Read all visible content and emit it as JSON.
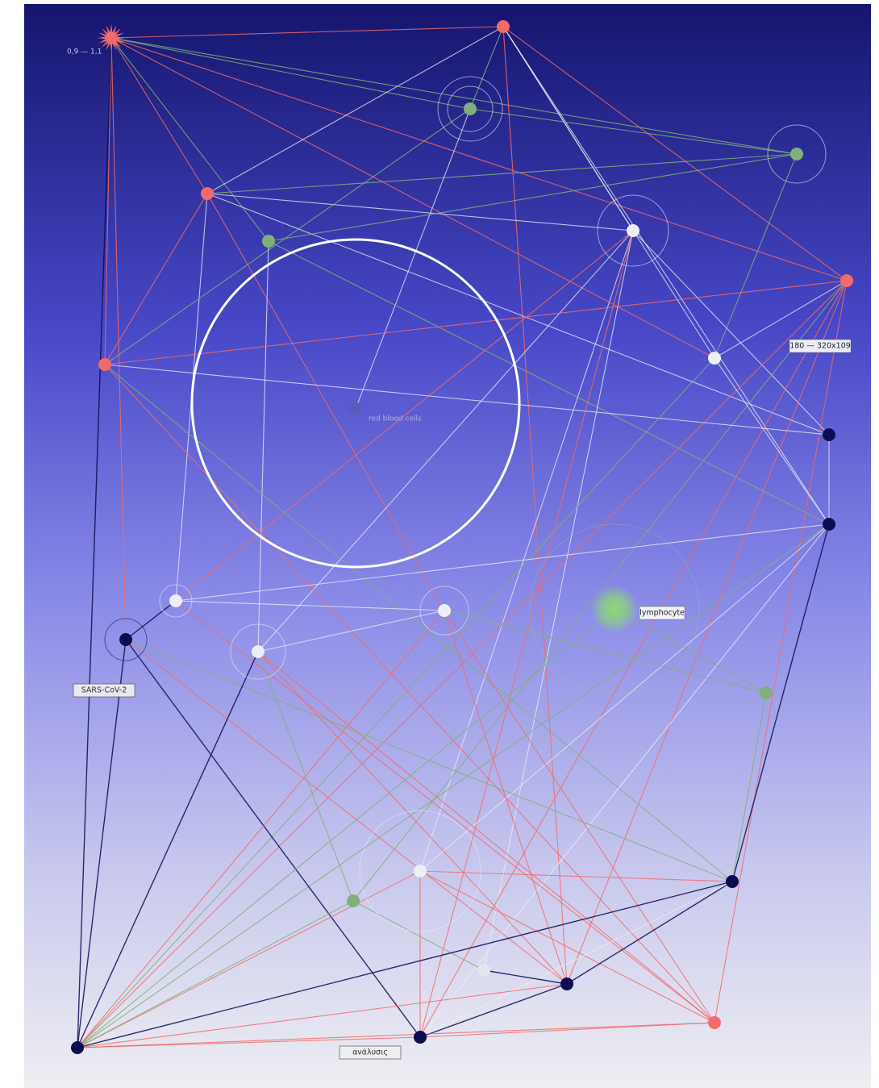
{
  "labels": {
    "range_top": "0,9 — 1,1",
    "size": "180 — 320x109",
    "red_blood_cells": "red blood cells",
    "lymphocyte": "lymphocyte",
    "virus": "SARS-CoV-2",
    "analysis": "ανάλυσις"
  }
}
